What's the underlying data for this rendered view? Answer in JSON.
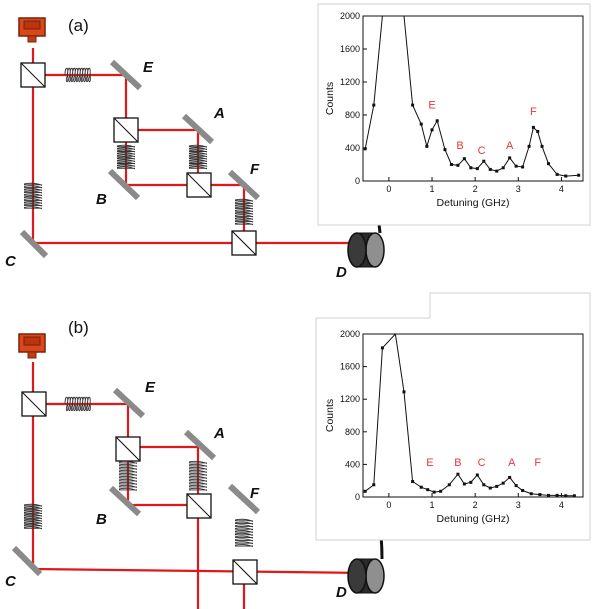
{
  "panels": [
    {
      "label": "(a)",
      "components": {
        "A": "A",
        "B": "B",
        "C": "C",
        "D": "D",
        "E": "E",
        "F": "F"
      },
      "chart_data": {
        "type": "line",
        "xlabel": "Detuning (GHz)",
        "ylabel": "Counts",
        "xlim": [
          -0.6,
          4.5
        ],
        "ylim": [
          0,
          2000
        ],
        "xticks": [
          0,
          1,
          2,
          3,
          4
        ],
        "yticks": [
          0,
          400,
          800,
          1200,
          1600,
          2000
        ],
        "series": [
          {
            "x": [
              -0.55,
              -0.35,
              -0.15,
              0.35,
              0.55,
              0.75,
              0.88,
              1.0,
              1.12,
              1.3,
              1.45,
              1.6,
              1.75,
              1.9,
              2.05,
              2.2,
              2.35,
              2.5,
              2.65,
              2.8,
              2.95,
              3.1,
              3.25,
              3.35,
              3.45,
              3.55,
              3.7,
              3.9,
              4.1,
              4.4
            ],
            "y": [
              390,
              920,
              2000,
              2000,
              920,
              690,
              420,
              620,
              730,
              380,
              200,
              190,
              270,
              160,
              150,
              240,
              140,
              120,
              160,
              280,
              180,
              170,
              420,
              650,
              600,
              420,
              210,
              80,
              60,
              70
            ]
          }
        ],
        "annotations": [
          {
            "text": "E",
            "x": 1.0,
            "y": 880
          },
          {
            "text": "B",
            "x": 1.65,
            "y": 390
          },
          {
            "text": "C",
            "x": 2.15,
            "y": 330
          },
          {
            "text": "A",
            "x": 2.8,
            "y": 390
          },
          {
            "text": "F",
            "x": 3.35,
            "y": 800
          }
        ]
      }
    },
    {
      "label": "(b)",
      "components": {
        "A": "A",
        "B": "B",
        "C": "C",
        "D": "D",
        "E": "E",
        "F": "F"
      },
      "chart_data": {
        "type": "line",
        "xlabel": "Detuning (GHz)",
        "ylabel": "Counts",
        "xlim": [
          -0.6,
          4.5
        ],
        "ylim": [
          0,
          2000
        ],
        "xticks": [
          0,
          1,
          2,
          3,
          4
        ],
        "yticks": [
          0,
          400,
          800,
          1200,
          1600,
          2000
        ],
        "series": [
          {
            "x": [
              -0.55,
              -0.35,
              -0.15,
              0.15,
              0.35,
              0.55,
              0.75,
              0.9,
              1.05,
              1.2,
              1.4,
              1.6,
              1.75,
              1.9,
              2.05,
              2.2,
              2.35,
              2.5,
              2.65,
              2.8,
              2.95,
              3.1,
              3.3,
              3.5,
              3.7,
              3.9,
              4.1,
              4.3
            ],
            "y": [
              70,
              150,
              1830,
              2000,
              1290,
              190,
              120,
              90,
              60,
              70,
              150,
              280,
              160,
              180,
              270,
              150,
              110,
              130,
              170,
              240,
              140,
              80,
              40,
              30,
              20,
              20,
              15,
              15
            ]
          }
        ],
        "annotations": [
          {
            "text": "E",
            "x": 0.95,
            "y": 380
          },
          {
            "text": "B",
            "x": 1.6,
            "y": 380
          },
          {
            "text": "C",
            "x": 2.15,
            "y": 380
          },
          {
            "text": "A",
            "x": 2.85,
            "y": 380
          },
          {
            "text": "F",
            "x": 3.45,
            "y": 380
          }
        ]
      }
    }
  ]
}
